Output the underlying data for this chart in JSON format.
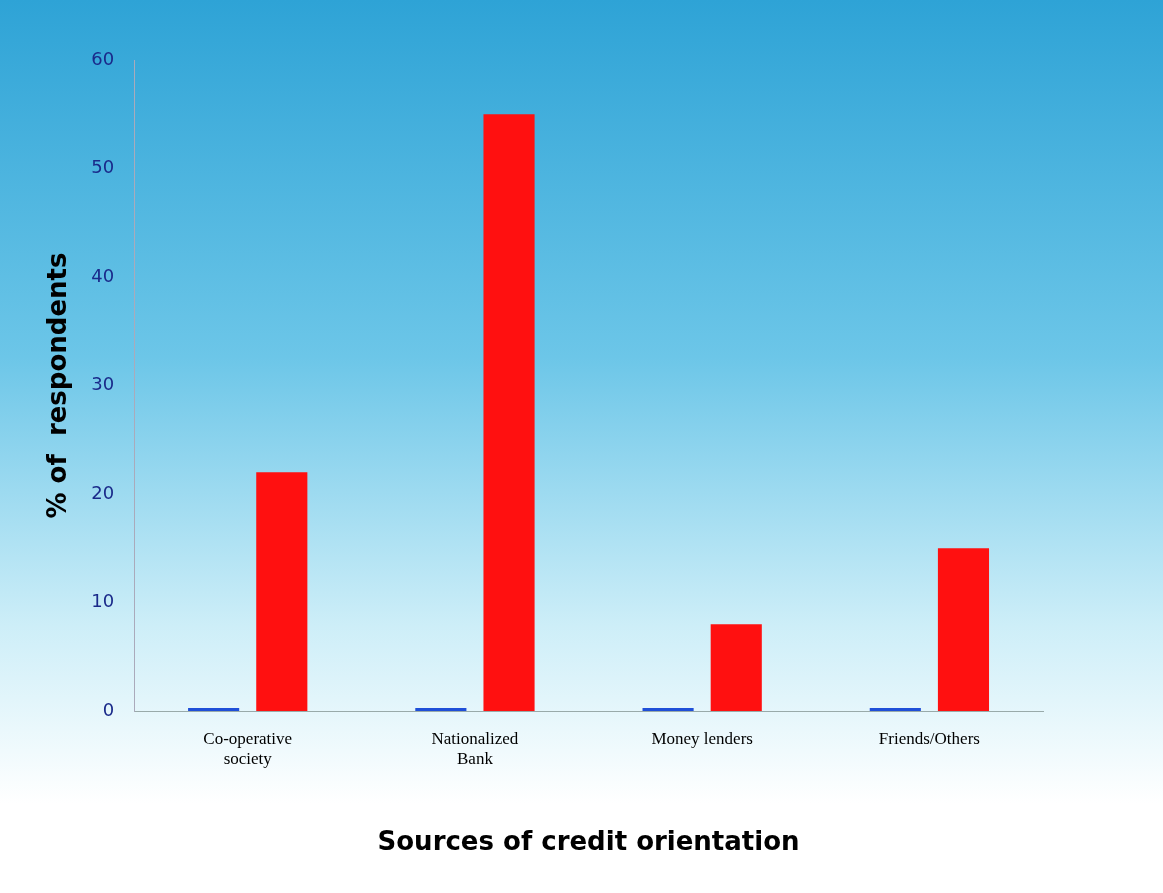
{
  "chart_data": {
    "type": "bar",
    "xlabel": "Sources of credit orientation",
    "ylabel": "% of  respondents",
    "categories": [
      "Co-operative society",
      "Nationalized Bank",
      "Money lenders",
      "Friends/Others"
    ],
    "series": [
      {
        "color": "#1f4fd8",
        "values": [
          0,
          0,
          0,
          0
        ]
      },
      {
        "color": "#ff1010",
        "values": [
          22,
          55,
          8,
          15
        ]
      }
    ],
    "ylim": [
      0,
      60
    ],
    "yticks": [
      0,
      10,
      20,
      30,
      40,
      50,
      60
    ],
    "grid": false,
    "legend": false
  }
}
